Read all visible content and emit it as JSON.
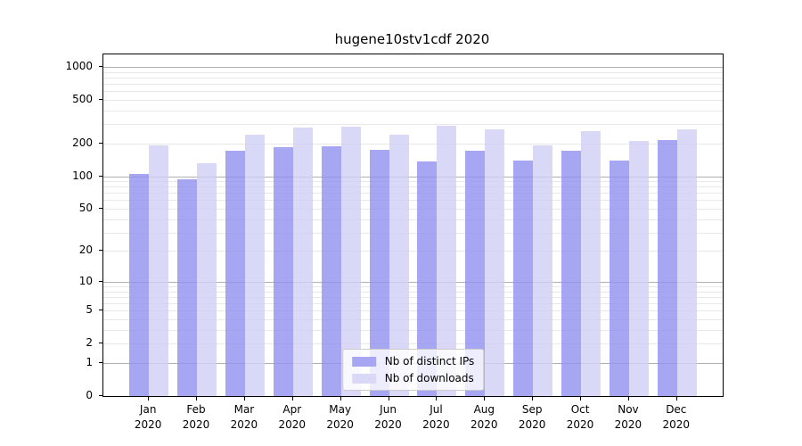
{
  "chart_data": {
    "type": "bar",
    "title": "hugene10stv1cdf 2020",
    "xlabel": "",
    "ylabel": "",
    "categories": [
      "Jan",
      "Feb",
      "Mar",
      "Apr",
      "May",
      "Jun",
      "Jul",
      "Aug",
      "Sep",
      "Oct",
      "Nov",
      "Dec"
    ],
    "category_year": "2020",
    "series": [
      {
        "name": "Nb of distinct IPs",
        "color": "#a6a6f2",
        "fill_rgba": "rgba(144,144,239,0.8)",
        "values": [
          104,
          93,
          171,
          185,
          187,
          174,
          137,
          172,
          138,
          172,
          140,
          215
        ]
      },
      {
        "name": "Nb of downloads",
        "color": "#d9d9f7",
        "fill_rgba": "rgba(208,208,245,0.8)",
        "values": [
          190,
          131,
          240,
          280,
          285,
          238,
          290,
          270,
          193,
          260,
          210,
          270
        ]
      }
    ],
    "yscale": "log1p",
    "ylim": [
      0,
      1300
    ],
    "yticks": [
      0,
      1,
      2,
      5,
      10,
      20,
      50,
      100,
      200,
      500,
      1000
    ],
    "grid": "horizontal major+minor",
    "legend_position": "lower center",
    "grid_major_color": "#b0b0b0",
    "grid_minor_color": "#e8e8e8"
  }
}
